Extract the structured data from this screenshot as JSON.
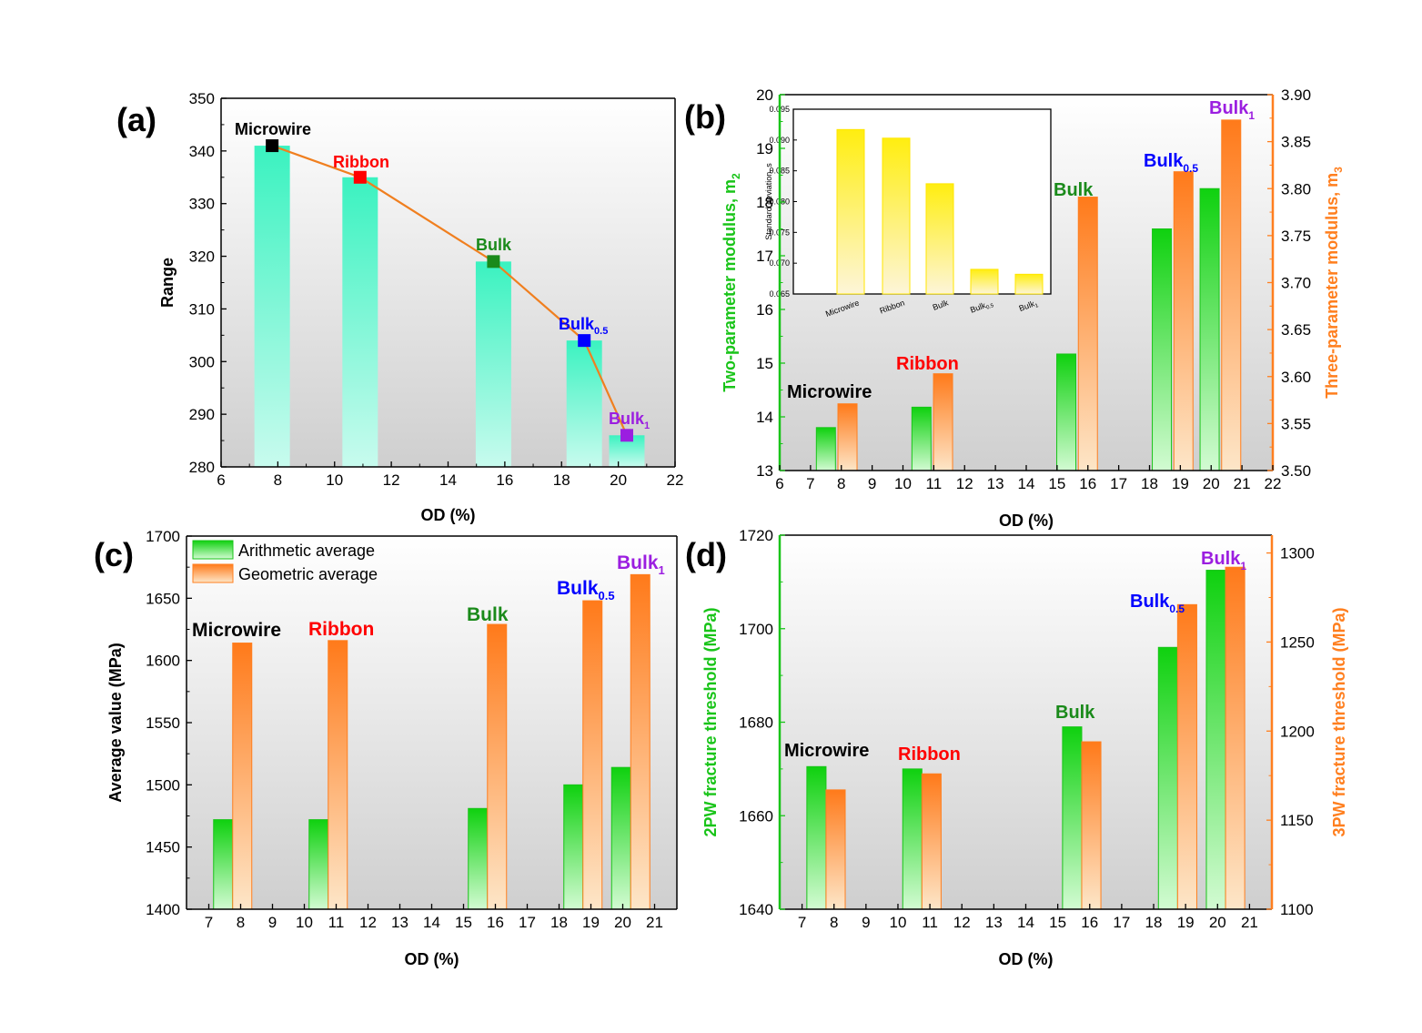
{
  "colors": {
    "green": "#19c419",
    "orange": "#ff7f1f",
    "teal": "#3ff0c0",
    "yellow": "#ffea1f",
    "line": "#f07f1f",
    "cat_microwire": "#000000",
    "cat_ribbon": "#ff0000",
    "cat_bulk": "#1a8a1a",
    "cat_bulk05": "#0000ff",
    "cat_bulk1": "#9b1ee0"
  },
  "chart_data": [
    {
      "panel": "(a)",
      "type": "bar",
      "xlabel": "OD (%)",
      "ylabel": "Range",
      "xlim": [
        6,
        22
      ],
      "ylim": [
        280,
        350
      ],
      "xticks": [
        6,
        8,
        10,
        12,
        14,
        16,
        18,
        20,
        22
      ],
      "yticks": [
        280,
        290,
        300,
        310,
        320,
        330,
        340,
        350
      ],
      "bar_width": 1.25,
      "series": [
        {
          "style": "bar+line",
          "points": [
            {
              "label": "Microwire",
              "x": 7.8,
              "y": 341
            },
            {
              "label": "Ribbon",
              "x": 10.9,
              "y": 335
            },
            {
              "label": "Bulk",
              "x": 15.6,
              "y": 319
            },
            {
              "label": "Bulk",
              "sub": "0.5",
              "x": 18.8,
              "y": 304
            },
            {
              "label": "Bulk",
              "sub": "1",
              "x": 20.3,
              "y": 286
            }
          ]
        }
      ]
    },
    {
      "panel": "(b)",
      "type": "bar",
      "xlabel": "OD (%)",
      "ylabel": "Two-parameter modulus, m",
      "ylabel_sub": "2",
      "y2label": "Three-parameter modulus, m",
      "y2label_sub": "3",
      "xlim": [
        6,
        22
      ],
      "ylim": [
        13,
        20
      ],
      "y2lim": [
        3.5,
        3.9
      ],
      "xticks": [
        6,
        7,
        8,
        9,
        10,
        11,
        12,
        13,
        14,
        15,
        16,
        17,
        18,
        19,
        20,
        21,
        22
      ],
      "yticks": [
        13,
        14,
        15,
        16,
        17,
        18,
        19,
        20
      ],
      "y2ticks": [
        "3.50",
        "3.55",
        "3.60",
        "3.65",
        "3.70",
        "3.75",
        "3.80",
        "3.85",
        "3.90"
      ],
      "categories": [
        {
          "label": "Microwire",
          "x1": 7.5,
          "x2": 8.2
        },
        {
          "label": "Ribbon",
          "x1": 10.6,
          "x2": 11.3
        },
        {
          "label": "Bulk",
          "x1": 15.3,
          "x2": 16.0
        },
        {
          "label": "Bulk",
          "sub": "0.5",
          "x1": 18.4,
          "x2": 19.1
        },
        {
          "label": "Bulk",
          "sub": "1",
          "x1": 19.95,
          "x2": 20.65
        }
      ],
      "series": [
        {
          "axis": "left",
          "values": [
            13.8,
            14.18,
            15.17,
            17.5,
            18.25
          ]
        },
        {
          "axis": "right",
          "values": [
            3.571,
            3.603,
            3.791,
            3.818,
            3.873
          ]
        }
      ],
      "inset": {
        "ylabel": "Standard deviation, s",
        "ylim": [
          0.065,
          0.095
        ],
        "yticks": [
          "0.065",
          "0.070",
          "0.075",
          "0.080",
          "0.085",
          "0.090",
          "0.095"
        ],
        "categories": [
          "Microwire",
          "Ribbon",
          "Bulk",
          "Bulk",
          "Bulk"
        ],
        "subs": [
          "",
          "",
          "",
          "0.5",
          "1"
        ],
        "values": [
          0.0917,
          0.0903,
          0.0829,
          0.069,
          0.0682
        ]
      }
    },
    {
      "panel": "(c)",
      "type": "bar",
      "xlabel": "OD (%)",
      "ylabel": "Average value (MPa)",
      "xlim": [
        6.3,
        21.7
      ],
      "ylim": [
        1400,
        1700
      ],
      "xticks": [
        7,
        8,
        9,
        10,
        11,
        12,
        13,
        14,
        15,
        16,
        17,
        18,
        19,
        20,
        21
      ],
      "yticks": [
        1400,
        1450,
        1500,
        1550,
        1600,
        1650,
        1700
      ],
      "legend": [
        "Arithmetic average",
        "Geometric average"
      ],
      "categories": [
        {
          "label": "Microwire",
          "x1": 7.45,
          "x2": 8.05
        },
        {
          "label": "Ribbon",
          "x1": 10.45,
          "x2": 11.05
        },
        {
          "label": "Bulk",
          "x1": 15.45,
          "x2": 16.05
        },
        {
          "label": "Bulk",
          "sub": "0.5",
          "x1": 18.45,
          "x2": 19.05
        },
        {
          "label": "Bulk",
          "sub": "1",
          "x1": 19.95,
          "x2": 20.55
        }
      ],
      "series": [
        {
          "name": "Arithmetic average",
          "values": [
            1472,
            1472,
            1481,
            1500,
            1514
          ]
        },
        {
          "name": "Geometric average",
          "values": [
            1614,
            1616,
            1629,
            1648,
            1669
          ]
        }
      ]
    },
    {
      "panel": "(d)",
      "type": "bar",
      "xlabel": "OD (%)",
      "ylabel": "2PW fracture threshold (MPa)",
      "y2label": "3PW fracture threshold (MPa)",
      "xlim": [
        6.3,
        21.7
      ],
      "ylim": [
        1640,
        1720
      ],
      "y2lim": [
        1100,
        1310
      ],
      "xticks": [
        7,
        8,
        9,
        10,
        11,
        12,
        13,
        14,
        15,
        16,
        17,
        18,
        19,
        20,
        21
      ],
      "yticks": [
        1640,
        1660,
        1680,
        1700,
        1720
      ],
      "y2ticks": [
        1100,
        1150,
        1200,
        1250,
        1300
      ],
      "categories": [
        {
          "label": "Microwire",
          "x1": 7.45,
          "x2": 8.05
        },
        {
          "label": "Ribbon",
          "x1": 10.45,
          "x2": 11.05
        },
        {
          "label": "Bulk",
          "x1": 15.45,
          "x2": 16.05
        },
        {
          "label": "Bulk",
          "sub": "0.5",
          "x1": 18.45,
          "x2": 19.05
        },
        {
          "label": "Bulk",
          "sub": "1",
          "x1": 19.95,
          "x2": 20.55
        }
      ],
      "series": [
        {
          "axis": "left",
          "values": [
            1670.5,
            1670,
            1679,
            1696,
            1712.5
          ]
        },
        {
          "axis": "right",
          "values": [
            1167,
            1176,
            1194,
            1271,
            1292
          ]
        }
      ]
    }
  ]
}
